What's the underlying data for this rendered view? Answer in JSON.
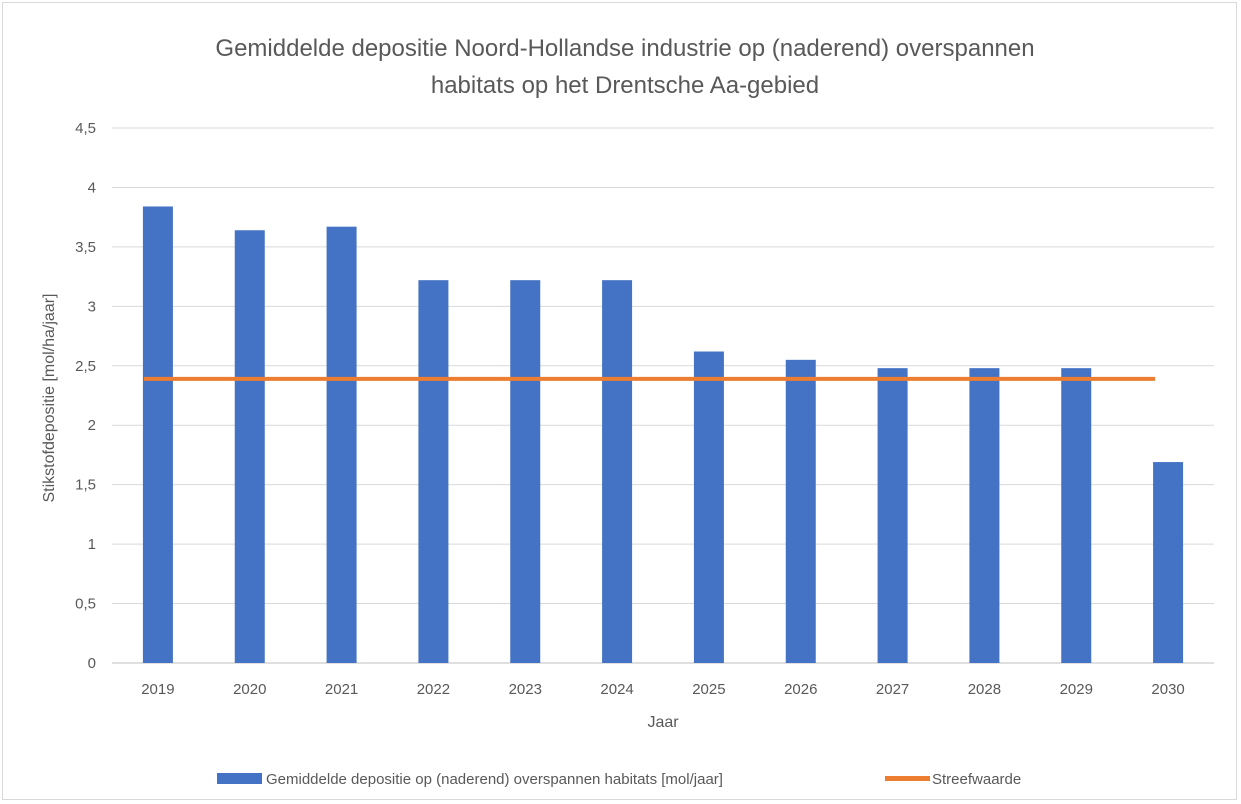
{
  "chart_data": {
    "type": "bar",
    "title_lines": [
      "Gemiddelde depositie Noord-Hollandse industrie op (naderend) overspannen",
      "habitats op het Drentsche Aa-gebied"
    ],
    "xlabel": "Jaar",
    "ylabel": "Stikstofdepositie [mol/ha/jaar]",
    "ylim": [
      0,
      4.5
    ],
    "ytick_values": [
      0,
      0.5,
      1,
      1.5,
      2,
      2.5,
      3,
      3.5,
      4,
      4.5
    ],
    "ytick_labels": [
      "0",
      "0,5",
      "1",
      "1,5",
      "2",
      "2,5",
      "3",
      "3,5",
      "4",
      "4,5"
    ],
    "grid": true,
    "legend_position": "bottom",
    "categories": [
      "2019",
      "2020",
      "2021",
      "2022",
      "2023",
      "2024",
      "2025",
      "2026",
      "2027",
      "2028",
      "2029",
      "2030"
    ],
    "series": [
      {
        "name": "Gemiddelde depositie op (naderend) overspannen habitats [mol/jaar]",
        "type": "bar",
        "color": "#4472C4",
        "values": [
          3.84,
          3.64,
          3.67,
          3.22,
          3.22,
          3.22,
          2.62,
          2.55,
          2.48,
          2.48,
          2.48,
          1.69
        ]
      },
      {
        "name": "Streefwaarde",
        "type": "line",
        "color": "#ED7D31",
        "value": 2.39
      }
    ]
  }
}
